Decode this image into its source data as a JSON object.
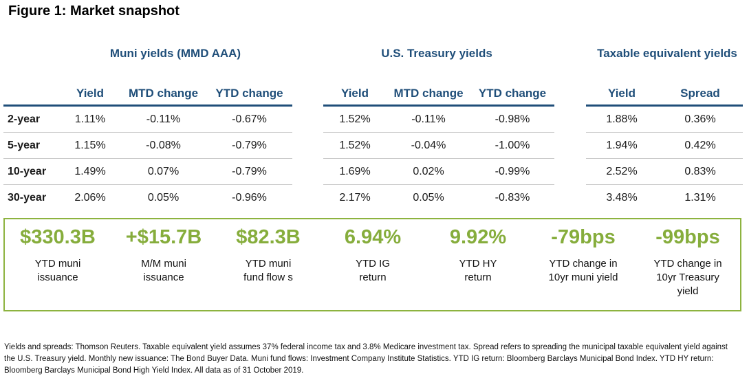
{
  "title": "Figure 1:  Market snapshot",
  "groups": {
    "muni": "Muni yields (MMD AAA)",
    "treasury": "U.S. Treasury yields",
    "taxable": "Taxable equivalent yields"
  },
  "muni_table": {
    "headers": [
      "Yield",
      "MTD change",
      "YTD change"
    ],
    "rows": [
      {
        "label": "2-year",
        "values": [
          "1.11%",
          "-0.11%",
          "-0.67%"
        ]
      },
      {
        "label": "5-year",
        "values": [
          "1.15%",
          "-0.08%",
          "-0.79%"
        ]
      },
      {
        "label": "10-year",
        "values": [
          "1.49%",
          "0.07%",
          "-0.79%"
        ]
      },
      {
        "label": "30-year",
        "values": [
          "2.06%",
          "0.05%",
          "-0.96%"
        ]
      }
    ]
  },
  "treasury_table": {
    "headers": [
      "Yield",
      "MTD change",
      "YTD change"
    ],
    "rows": [
      {
        "values": [
          "1.52%",
          "-0.11%",
          "-0.98%"
        ]
      },
      {
        "values": [
          "1.52%",
          "-0.04%",
          "-1.00%"
        ]
      },
      {
        "values": [
          "1.69%",
          "0.02%",
          "-0.99%"
        ]
      },
      {
        "values": [
          "2.17%",
          "0.05%",
          "-0.83%"
        ]
      }
    ]
  },
  "taxable_table": {
    "headers": [
      "Yield",
      "Spread"
    ],
    "rows": [
      {
        "values": [
          "1.88%",
          "0.36%"
        ]
      },
      {
        "values": [
          "1.94%",
          "0.42%"
        ]
      },
      {
        "values": [
          "2.52%",
          "0.83%"
        ]
      },
      {
        "values": [
          "3.48%",
          "1.31%"
        ]
      }
    ]
  },
  "stats": [
    {
      "value": "$330.3B",
      "desc": [
        "YTD muni",
        "issuance"
      ]
    },
    {
      "value": "+$15.7B",
      "desc": [
        "M/M muni",
        "issuance"
      ]
    },
    {
      "value": "$82.3B",
      "desc": [
        "YTD muni",
        "fund flow s"
      ]
    },
    {
      "value": "6.94%",
      "desc": [
        "YTD IG",
        "return"
      ]
    },
    {
      "value": "9.92%",
      "desc": [
        "YTD HY",
        "return"
      ]
    },
    {
      "value": "-79bps",
      "desc": [
        "YTD change in",
        "10yr muni yield"
      ]
    },
    {
      "value": "-99bps",
      "desc": [
        "YTD change in",
        "10yr Treasury",
        "yield"
      ]
    }
  ],
  "footnote": "Yields and spreads: Thomson Reuters. Taxable equivalent yield assumes 37% federal income tax and 3.8% Medicare investment tax. Spread refers to spreading the municipal taxable equivalent yield against the U.S. Treasury yield. Monthly new issuance: The Bond Buyer Data. Muni fund flows: Investment Company Institute Statistics. YTD IG return: Bloomberg Barclays Municipal Bond Index. YTD HY return: Bloomberg Barclays Municipal Bond High Yield Index. All data as of 31 October 2019.",
  "colors": {
    "navy": "#1f4e79",
    "green": "#86ad3c",
    "border_green": "#8db33f"
  }
}
